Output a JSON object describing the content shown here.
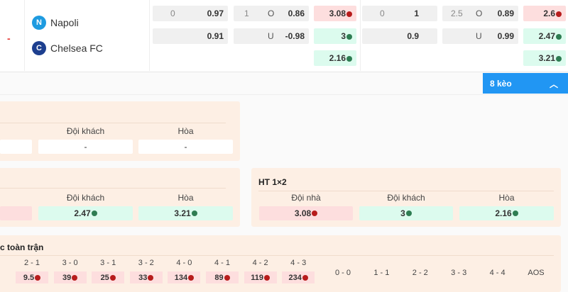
{
  "match": {
    "status": "-",
    "home": "Napoli",
    "away": "Chelsea FC"
  },
  "odds": {
    "ft_handicap": {
      "line": "0",
      "home": "0.97",
      "away": "0.91"
    },
    "ft_ou": {
      "line": "1",
      "over_label": "O",
      "over": "0.86",
      "under_label": "U",
      "under": "-0.98"
    },
    "ft_1x2": {
      "home": "3.08",
      "away": "3",
      "draw": "2.16"
    },
    "h2_handicap": {
      "line": "0",
      "home": "1",
      "away": "0.9"
    },
    "h2_ou": {
      "line": "2.5",
      "over_label": "O",
      "over": "0.89",
      "under_label": "U",
      "under": "0.99"
    },
    "h2_1x2": {
      "home": "2.6",
      "away": "2.47",
      "draw": "3.21"
    }
  },
  "more_button": "8 kèo",
  "panel1": {
    "labels": [
      "Đội khách",
      "Hòa"
    ],
    "values": [
      "-",
      "-"
    ]
  },
  "panel2": {
    "labels": [
      "Đội khách",
      "Hòa"
    ],
    "values": [
      "2.47",
      "3.21"
    ]
  },
  "ht1x2": {
    "title": "HT 1×2",
    "labels": [
      "Đội nhà",
      "Đội khách",
      "Hòa"
    ],
    "values": [
      "3.08",
      "3",
      "2.16"
    ]
  },
  "scores": {
    "title": "c toàn trận",
    "home_wins": [
      {
        "s": "2 - 1",
        "v": "9.5"
      },
      {
        "s": "3 - 0",
        "v": "39"
      },
      {
        "s": "3 - 1",
        "v": "25"
      },
      {
        "s": "3 - 2",
        "v": "33"
      },
      {
        "s": "4 - 0",
        "v": "134"
      },
      {
        "s": "4 - 1",
        "v": "89"
      },
      {
        "s": "4 - 2",
        "v": "119"
      },
      {
        "s": "4 - 3",
        "v": "234"
      }
    ],
    "draws": [
      "0 - 0",
      "1 - 1",
      "2 - 2",
      "3 - 3",
      "4 - 4",
      "AOS"
    ]
  },
  "colors": {
    "accent": "#2196f3",
    "down": "#b71c1c",
    "up": "#2e7d52",
    "panel": "#fdefe4"
  }
}
